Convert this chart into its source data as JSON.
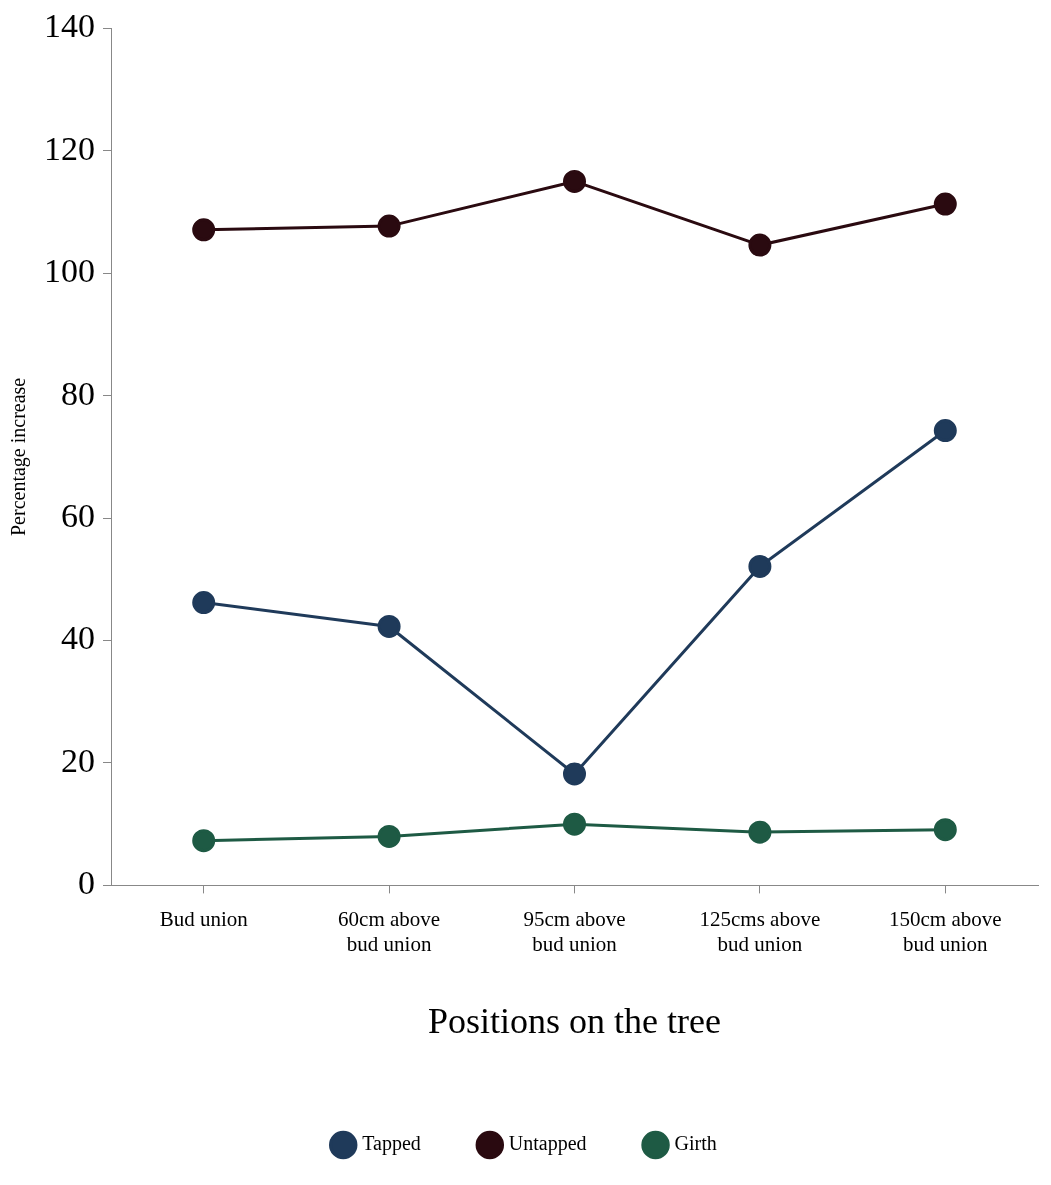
{
  "chart_data": {
    "type": "line",
    "xlabel": "Positions on the tree",
    "ylabel": "Percentage increase",
    "categories": [
      "Bud union",
      "60cm above bud union",
      "95cm above bud union",
      "125cms above bud union",
      "150cm above bud union"
    ],
    "series": [
      {
        "name": "Tapped",
        "color": "#1f3a5a",
        "values": [
          46.2,
          42.3,
          18.2,
          52.1,
          74.3
        ]
      },
      {
        "name": "Untapped",
        "color": "#2a0a10",
        "values": [
          107.1,
          107.7,
          115,
          104.6,
          111.3
        ]
      },
      {
        "name": "Girth",
        "color": "#1e5a44",
        "values": [
          7.3,
          8.0,
          10.0,
          8.7,
          9.1
        ]
      }
    ],
    "ylim": [
      0,
      140
    ],
    "yticks": [
      0,
      20,
      40,
      60,
      80,
      100,
      120,
      140
    ],
    "grid": false,
    "legend": "bottom",
    "marker": "circle",
    "line_style": "solid"
  }
}
